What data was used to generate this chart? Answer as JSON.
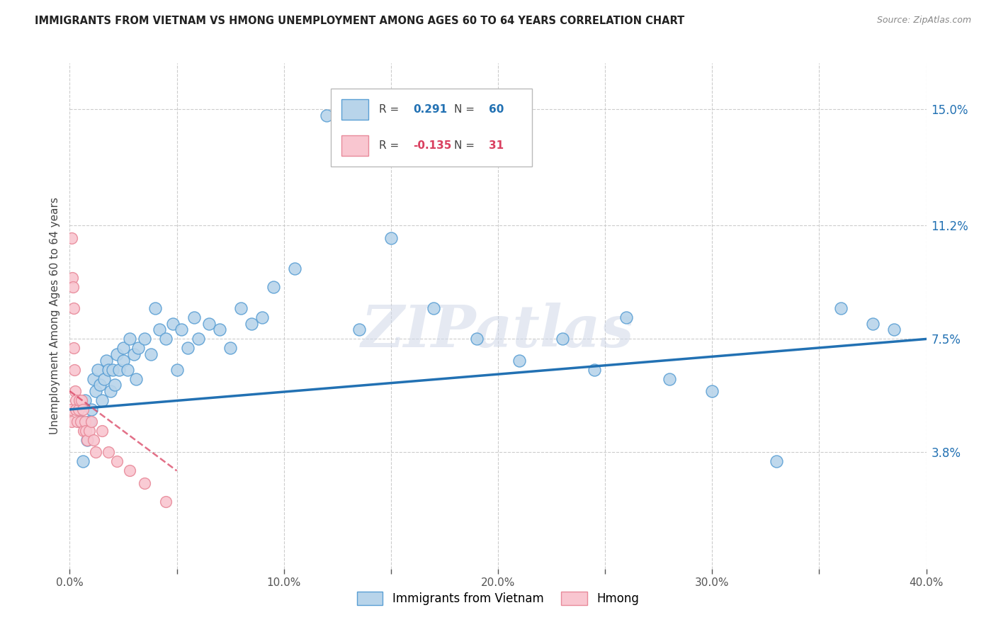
{
  "title": "IMMIGRANTS FROM VIETNAM VS HMONG UNEMPLOYMENT AMONG AGES 60 TO 64 YEARS CORRELATION CHART",
  "source": "Source: ZipAtlas.com",
  "ylabel": "Unemployment Among Ages 60 to 64 years",
  "xlabel_ticks": [
    "0.0%",
    "",
    "10.0%",
    "",
    "20.0%",
    "",
    "30.0%",
    "",
    "40.0%"
  ],
  "xtick_vals": [
    0,
    5,
    10,
    15,
    20,
    25,
    30,
    35,
    40
  ],
  "xlim": [
    0.0,
    40.0
  ],
  "ylim": [
    0.0,
    16.5
  ],
  "right_yticks": [
    3.8,
    7.5,
    11.2,
    15.0
  ],
  "right_ytick_labels": [
    "3.8%",
    "7.5%",
    "11.2%",
    "15.0%"
  ],
  "vietnam_R": 0.291,
  "vietnam_N": 60,
  "hmong_R": -0.135,
  "hmong_N": 31,
  "vietnam_color": "#b8d4ea",
  "vietnam_edge_color": "#5a9fd4",
  "vietnam_line_color": "#2271b3",
  "hmong_color": "#f9c6d0",
  "hmong_edge_color": "#e88a9a",
  "hmong_line_color": "#d94060",
  "vietnam_scatter_x": [
    0.5,
    0.6,
    0.7,
    0.8,
    0.9,
    1.0,
    1.1,
    1.2,
    1.3,
    1.4,
    1.5,
    1.6,
    1.7,
    1.8,
    1.9,
    2.0,
    2.1,
    2.2,
    2.3,
    2.5,
    2.5,
    2.7,
    2.8,
    3.0,
    3.1,
    3.2,
    3.5,
    3.8,
    4.0,
    4.2,
    4.5,
    4.8,
    5.0,
    5.2,
    5.5,
    5.8,
    6.0,
    6.5,
    7.0,
    7.5,
    8.0,
    8.5,
    9.0,
    9.5,
    10.5,
    12.0,
    13.5,
    15.0,
    17.0,
    19.0,
    21.0,
    23.0,
    24.5,
    26.0,
    28.0,
    30.0,
    33.0,
    36.0,
    37.5,
    38.5
  ],
  "vietnam_scatter_y": [
    4.8,
    3.5,
    5.5,
    4.2,
    4.8,
    5.2,
    6.2,
    5.8,
    6.5,
    6.0,
    5.5,
    6.2,
    6.8,
    6.5,
    5.8,
    6.5,
    6.0,
    7.0,
    6.5,
    6.8,
    7.2,
    6.5,
    7.5,
    7.0,
    6.2,
    7.2,
    7.5,
    7.0,
    8.5,
    7.8,
    7.5,
    8.0,
    6.5,
    7.8,
    7.2,
    8.2,
    7.5,
    8.0,
    7.8,
    7.2,
    8.5,
    8.0,
    8.2,
    9.2,
    9.8,
    14.8,
    7.8,
    10.8,
    8.5,
    7.5,
    6.8,
    7.5,
    6.5,
    8.2,
    6.2,
    5.8,
    3.5,
    8.5,
    8.0,
    7.8
  ],
  "hmong_scatter_x": [
    0.05,
    0.08,
    0.1,
    0.12,
    0.15,
    0.18,
    0.2,
    0.22,
    0.25,
    0.28,
    0.3,
    0.35,
    0.4,
    0.45,
    0.5,
    0.55,
    0.6,
    0.65,
    0.7,
    0.75,
    0.8,
    0.9,
    1.0,
    1.1,
    1.2,
    1.5,
    1.8,
    2.2,
    2.8,
    3.5,
    4.5
  ],
  "hmong_scatter_y": [
    5.2,
    4.8,
    10.8,
    9.5,
    9.2,
    8.5,
    7.2,
    6.5,
    5.8,
    5.5,
    5.2,
    4.8,
    5.2,
    5.5,
    4.8,
    5.5,
    5.2,
    4.5,
    4.8,
    4.5,
    4.2,
    4.5,
    4.8,
    4.2,
    3.8,
    4.5,
    3.8,
    3.5,
    3.2,
    2.8,
    2.2
  ],
  "watermark": "ZIPatlas",
  "background_color": "#ffffff",
  "grid_color": "#cccccc"
}
